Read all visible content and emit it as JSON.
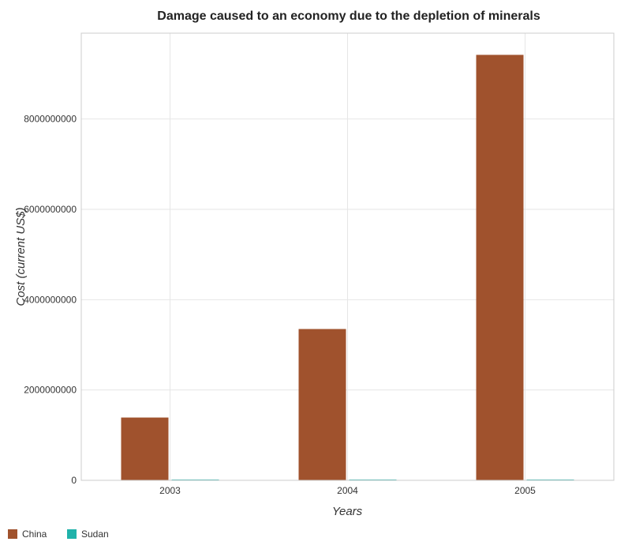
{
  "chart_data": {
    "type": "bar",
    "title": "Damage caused to an economy due to the depletion of minerals",
    "xlabel": "Years",
    "ylabel": "Cost (current US$)",
    "categories": [
      "2003",
      "2004",
      "2005"
    ],
    "series": [
      {
        "name": "China",
        "color": "#a0522d",
        "values": [
          1390000000,
          3350000000,
          9420000000
        ]
      },
      {
        "name": "Sudan",
        "color": "#20b2aa",
        "values": [
          10000000,
          12000000,
          7000000
        ]
      }
    ],
    "yticks": [
      0,
      2000000000,
      4000000000,
      6000000000,
      8000000000
    ],
    "ytick_labels": [
      "0",
      "2000000000",
      "4000000000",
      "6000000000",
      "8000000000"
    ],
    "ylim": [
      0,
      9900000000
    ],
    "grid": true,
    "legend_position": "bottom-left"
  }
}
